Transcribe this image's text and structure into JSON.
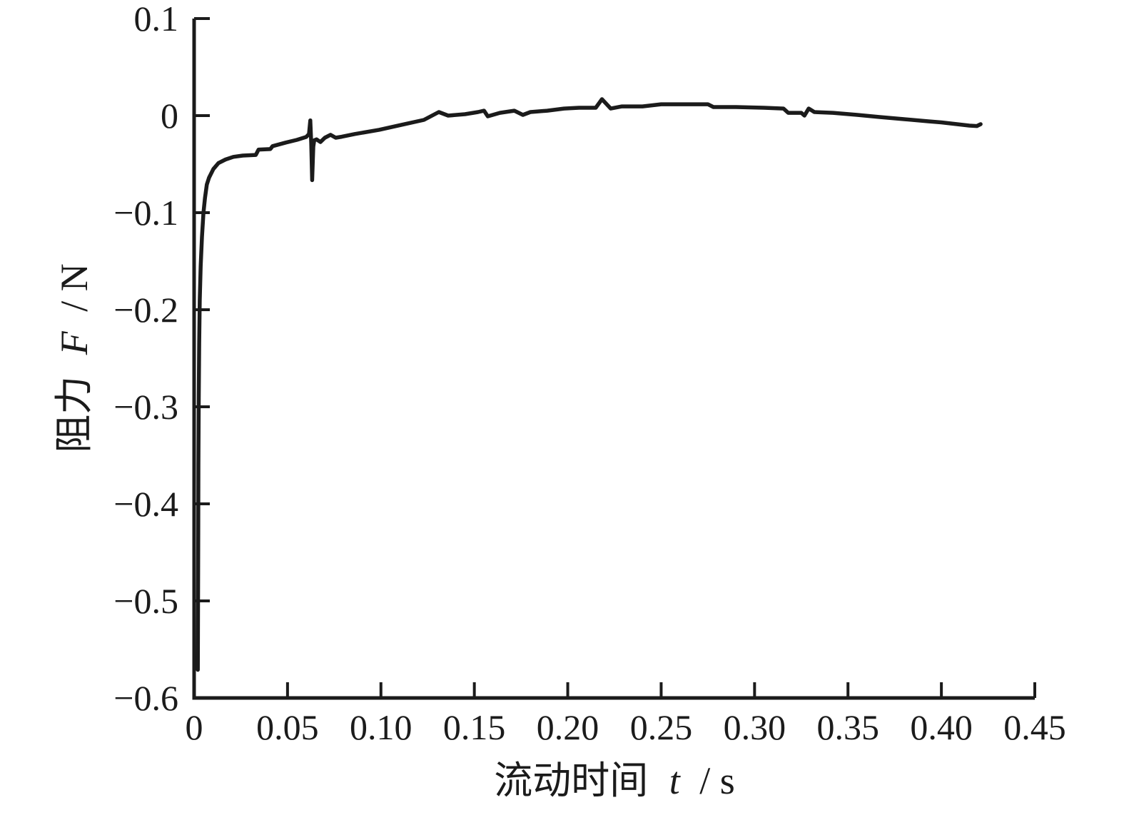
{
  "figure": {
    "background": "#ffffff",
    "axis_color": "#1b1b1b",
    "line_color": "#1b1b1b"
  },
  "chart_data": {
    "type": "line",
    "title": "",
    "xlabel_prefix": "流动时间",
    "xlabel_symbol": "t",
    "xlabel_suffix": "/ s",
    "ylabel_prefix": "阻力",
    "ylabel_symbol": "F",
    "ylabel_suffix": "/ N",
    "xlim": [
      0,
      0.45
    ],
    "ylim": [
      -0.6,
      0.1
    ],
    "grid": false,
    "legend": "none",
    "x_ticks": [
      0,
      0.05,
      0.1,
      0.15,
      0.2,
      0.25,
      0.3,
      0.35,
      0.4,
      0.45
    ],
    "x_tick_labels": [
      "0",
      "0.05",
      "0.10",
      "0.15",
      "0.20",
      "0.25",
      "0.30",
      "0.35",
      "0.40",
      "0.45"
    ],
    "y_ticks": [
      0.1,
      0,
      -0.1,
      -0.2,
      -0.3,
      -0.4,
      -0.5,
      -0.6
    ],
    "y_tick_labels": [
      "0.1",
      "0",
      "−0.1",
      "−0.2",
      "−0.3",
      "−0.4",
      "−0.5",
      "−0.6"
    ],
    "series": [
      {
        "name": "resistance-force",
        "color": "#1b1b1b",
        "points": [
          [
            0.002,
            -0.571
          ],
          [
            0.0021,
            -0.5
          ],
          [
            0.0022,
            -0.43
          ],
          [
            0.0023,
            -0.36
          ],
          [
            0.0025,
            -0.29
          ],
          [
            0.0027,
            -0.235
          ],
          [
            0.003,
            -0.19
          ],
          [
            0.0035,
            -0.155
          ],
          [
            0.0042,
            -0.125
          ],
          [
            0.005,
            -0.1
          ],
          [
            0.0058,
            -0.085
          ],
          [
            0.0068,
            -0.071
          ],
          [
            0.008,
            -0.064
          ],
          [
            0.0103,
            -0.055
          ],
          [
            0.013,
            -0.049
          ],
          [
            0.0168,
            -0.0452
          ],
          [
            0.021,
            -0.0425
          ],
          [
            0.026,
            -0.0412
          ],
          [
            0.033,
            -0.0405
          ],
          [
            0.0345,
            -0.035
          ],
          [
            0.0408,
            -0.0345
          ],
          [
            0.042,
            -0.0315
          ],
          [
            0.049,
            -0.0278
          ],
          [
            0.055,
            -0.025
          ],
          [
            0.06,
            -0.022
          ],
          [
            0.0615,
            -0.019
          ],
          [
            0.0622,
            -0.005
          ],
          [
            0.0627,
            -0.028
          ],
          [
            0.0632,
            -0.0665
          ],
          [
            0.0638,
            -0.032
          ],
          [
            0.0643,
            -0.0255
          ],
          [
            0.0655,
            -0.0245
          ],
          [
            0.0676,
            -0.0272
          ],
          [
            0.07,
            -0.0228
          ],
          [
            0.073,
            -0.0198
          ],
          [
            0.0758,
            -0.0228
          ],
          [
            0.079,
            -0.0218
          ],
          [
            0.086,
            -0.019
          ],
          [
            0.099,
            -0.0146
          ],
          [
            0.111,
            -0.0095
          ],
          [
            0.123,
            -0.0044
          ],
          [
            0.131,
            0.0037
          ],
          [
            0.136,
            0.0
          ],
          [
            0.145,
            0.0015
          ],
          [
            0.152,
            0.0037
          ],
          [
            0.1552,
            0.0051
          ],
          [
            0.1572,
            -0.0007
          ],
          [
            0.1637,
            0.0029
          ],
          [
            0.1714,
            0.0051
          ],
          [
            0.176,
            0.0007
          ],
          [
            0.18,
            0.0037
          ],
          [
            0.189,
            0.0051
          ],
          [
            0.198,
            0.0073
          ],
          [
            0.206,
            0.0081
          ],
          [
            0.215,
            0.0081
          ],
          [
            0.2183,
            0.0169
          ],
          [
            0.223,
            0.0073
          ],
          [
            0.229,
            0.0095
          ],
          [
            0.2345,
            0.0095
          ],
          [
            0.24,
            0.0095
          ],
          [
            0.25,
            0.0117
          ],
          [
            0.275,
            0.0117
          ],
          [
            0.278,
            0.0088
          ],
          [
            0.29,
            0.0088
          ],
          [
            0.305,
            0.0081
          ],
          [
            0.3155,
            0.0073
          ],
          [
            0.318,
            0.0029
          ],
          [
            0.325,
            0.0029
          ],
          [
            0.3267,
            0.0
          ],
          [
            0.329,
            0.0073
          ],
          [
            0.332,
            0.0037
          ],
          [
            0.342,
            0.0029
          ],
          [
            0.355,
            0.0007
          ],
          [
            0.367,
            -0.0015
          ],
          [
            0.38,
            -0.0037
          ],
          [
            0.393,
            -0.0059
          ],
          [
            0.4,
            -0.007
          ],
          [
            0.405,
            -0.0081
          ],
          [
            0.415,
            -0.0103
          ],
          [
            0.419,
            -0.0107
          ],
          [
            0.421,
            -0.0088
          ]
        ]
      }
    ]
  }
}
